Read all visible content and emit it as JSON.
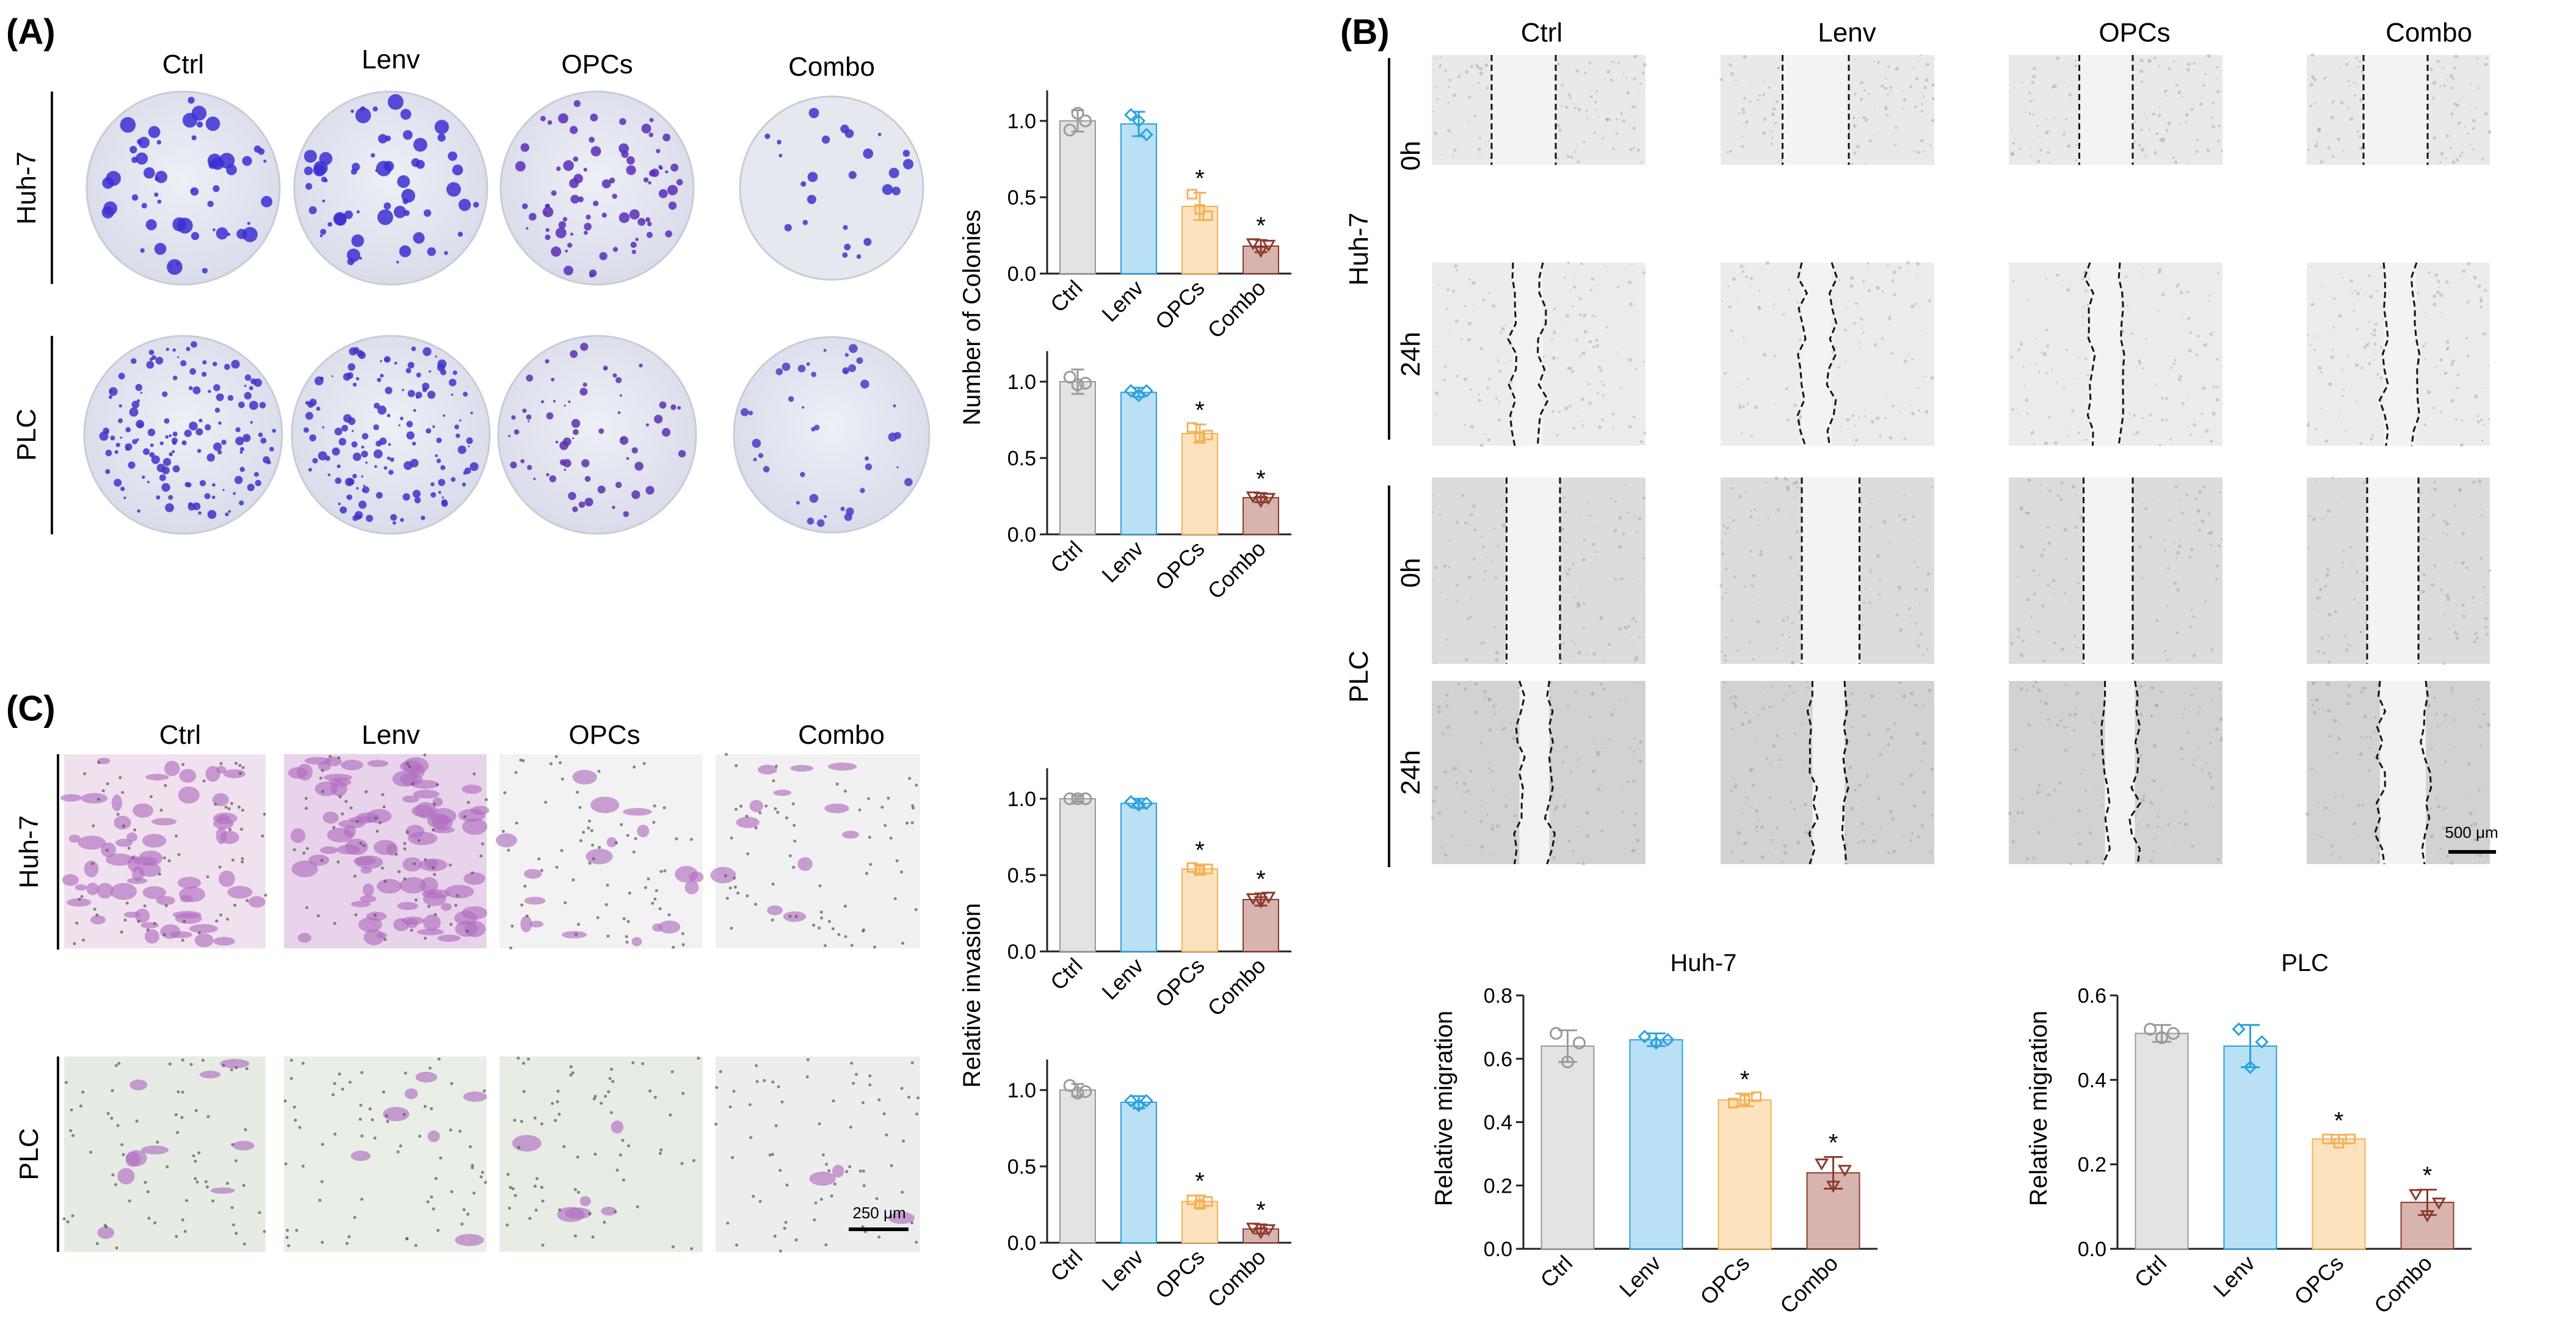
{
  "figure": {
    "panels": {
      "A": {
        "label": "(A)",
        "columns": [
          "Ctrl",
          "Lenv",
          "OPCs",
          "Combo"
        ],
        "rows": [
          "Huh-7",
          "PLC"
        ],
        "image_kind": "colony-formation plates"
      },
      "B": {
        "label": "(B)",
        "columns": [
          "Ctrl",
          "Lenv",
          "OPCs",
          "Combo"
        ],
        "cell_lines": [
          "Huh-7",
          "PLC"
        ],
        "time_points": [
          "0h",
          "24h"
        ],
        "scale_bar": "500 μm"
      },
      "C": {
        "label": "(C)",
        "columns": [
          "Ctrl",
          "Lenv",
          "OPCs",
          "Combo"
        ],
        "rows": [
          "Huh-7",
          "PLC"
        ],
        "scale_bar": "250 μm"
      }
    },
    "colors": {
      "Ctrl": "#e3e3e3",
      "Lenv": "#b9e0f5",
      "OPCs": "#fde3bd",
      "Combo": "#d8b4ae",
      "Ctrl_edge": "#9a9a9a",
      "Lenv_edge": "#2aa2dc",
      "OPCs_edge": "#f3b25a",
      "Combo_edge": "#8c3a2e"
    }
  },
  "chart_data": [
    {
      "id": "colonies-huh7",
      "type": "bar",
      "categories": [
        "Ctrl",
        "Lenv",
        "OPCs",
        "Combo"
      ],
      "values": [
        1.0,
        0.98,
        0.44,
        0.18
      ],
      "errors": [
        0.07,
        0.08,
        0.09,
        0.04
      ],
      "points": [
        [
          0.94,
          1.05,
          1.0
        ],
        [
          1.04,
          1.0,
          0.91
        ],
        [
          0.52,
          0.42,
          0.38
        ],
        [
          0.2,
          0.15,
          0.19
        ]
      ],
      "significant": [
        false,
        false,
        true,
        true
      ],
      "ylim": [
        0,
        1.2
      ],
      "yticks": [
        0.0,
        0.5,
        1.0
      ],
      "ytick_labels": [
        "0.0",
        "0.5",
        "1.0"
      ],
      "ylabel": ""
    },
    {
      "id": "colonies-plc",
      "type": "bar",
      "categories": [
        "Ctrl",
        "Lenv",
        "OPCs",
        "Combo"
      ],
      "values": [
        1.0,
        0.93,
        0.66,
        0.24
      ],
      "errors": [
        0.08,
        0.03,
        0.06,
        0.03
      ],
      "points": [
        [
          1.03,
          0.98,
          0.99
        ],
        [
          0.94,
          0.91,
          0.94
        ],
        [
          0.7,
          0.64,
          0.65
        ],
        [
          0.25,
          0.22,
          0.24
        ]
      ],
      "significant": [
        false,
        false,
        true,
        true
      ],
      "ylim": [
        0,
        1.2
      ],
      "yticks": [
        0.0,
        0.5,
        1.0
      ],
      "ytick_labels": [
        "0.0",
        "0.5",
        "1.0"
      ],
      "ylabel": "Number of Colonies"
    },
    {
      "id": "invasion-huh7",
      "type": "bar",
      "categories": [
        "Ctrl",
        "Lenv",
        "OPCs",
        "Combo"
      ],
      "values": [
        1.0,
        0.97,
        0.54,
        0.34
      ],
      "errors": [
        0.02,
        0.03,
        0.03,
        0.04
      ],
      "points": [
        [
          1.0,
          1.0,
          1.0
        ],
        [
          0.98,
          0.96,
          0.97
        ],
        [
          0.55,
          0.53,
          0.54
        ],
        [
          0.35,
          0.33,
          0.36
        ]
      ],
      "significant": [
        false,
        false,
        true,
        true
      ],
      "ylim": [
        0,
        1.2
      ],
      "yticks": [
        0.0,
        0.5,
        1.0
      ],
      "ytick_labels": [
        "0.0",
        "0.5",
        "1.0"
      ],
      "ylabel": ""
    },
    {
      "id": "invasion-plc",
      "type": "bar",
      "categories": [
        "Ctrl",
        "Lenv",
        "OPCs",
        "Combo"
      ],
      "values": [
        1.0,
        0.92,
        0.27,
        0.09
      ],
      "errors": [
        0.04,
        0.04,
        0.04,
        0.03
      ],
      "points": [
        [
          1.03,
          0.98,
          0.99
        ],
        [
          0.93,
          0.9,
          0.93
        ],
        [
          0.28,
          0.25,
          0.27
        ],
        [
          0.1,
          0.07,
          0.09
        ]
      ],
      "significant": [
        false,
        false,
        true,
        true
      ],
      "ylim": [
        0,
        1.2
      ],
      "yticks": [
        0.0,
        0.5,
        1.0
      ],
      "ytick_labels": [
        "0.0",
        "0.5",
        "1.0"
      ],
      "ylabel": "Relative invasion"
    },
    {
      "id": "migration-huh7",
      "type": "bar",
      "title": "Huh-7",
      "categories": [
        "Ctrl",
        "Lenv",
        "OPCs",
        "Combo"
      ],
      "values": [
        0.64,
        0.66,
        0.47,
        0.24
      ],
      "errors": [
        0.05,
        0.02,
        0.02,
        0.05
      ],
      "points": [
        [
          0.68,
          0.59,
          0.65
        ],
        [
          0.67,
          0.65,
          0.66
        ],
        [
          0.46,
          0.47,
          0.48
        ],
        [
          0.27,
          0.2,
          0.25
        ]
      ],
      "significant": [
        false,
        false,
        true,
        true
      ],
      "ylim": [
        0,
        0.8
      ],
      "yticks": [
        0.0,
        0.2,
        0.4,
        0.6,
        0.8
      ],
      "ytick_labels": [
        "0.0",
        "0.2",
        "0.4",
        "0.6",
        "0.8"
      ],
      "ylabel": "Relative migration"
    },
    {
      "id": "migration-plc",
      "type": "bar",
      "title": "PLC",
      "categories": [
        "Ctrl",
        "Lenv",
        "OPCs",
        "Combo"
      ],
      "values": [
        0.51,
        0.48,
        0.26,
        0.11
      ],
      "errors": [
        0.02,
        0.05,
        0.01,
        0.03
      ],
      "points": [
        [
          0.52,
          0.5,
          0.51
        ],
        [
          0.52,
          0.43,
          0.49
        ],
        [
          0.26,
          0.25,
          0.26
        ],
        [
          0.13,
          0.08,
          0.11
        ]
      ],
      "significant": [
        false,
        false,
        true,
        true
      ],
      "ylim": [
        0,
        0.6
      ],
      "yticks": [
        0.0,
        0.2,
        0.4,
        0.6
      ],
      "ytick_labels": [
        "0.0",
        "0.2",
        "0.4",
        "0.6"
      ],
      "ylabel": "Relative migration"
    }
  ]
}
